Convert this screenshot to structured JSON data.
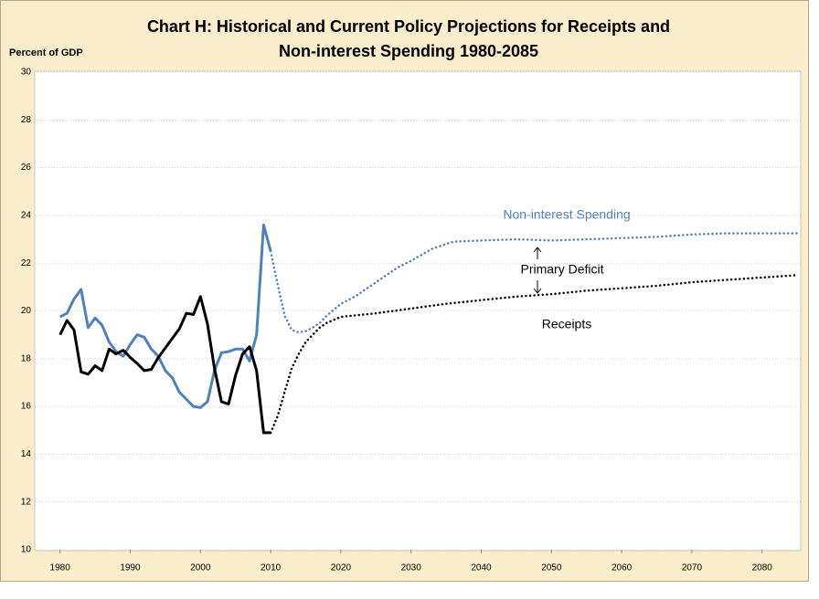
{
  "chart_data": {
    "type": "line",
    "title": [
      "Chart H: Historical and Current Policy Projections for Receipts and",
      "Non-interest Spending 1980-2085"
    ],
    "y_label": "Percent of GDP",
    "annotations": [
      "Non-interest Spending",
      "Primary Deficit",
      "Receipts"
    ],
    "xlim": [
      1976.4,
      2085.5
    ],
    "xticks": [
      1980,
      1990,
      2000,
      2010,
      2020,
      2030,
      2040,
      2050,
      2060,
      2070,
      2080
    ],
    "ylim": [
      10,
      30
    ],
    "yticks": [
      10,
      12,
      14,
      16,
      18,
      20,
      22,
      24,
      26,
      28,
      30
    ],
    "grid": true,
    "series": [
      {
        "color": "#4f81bd",
        "dotted": false,
        "x": [
          1980,
          1981,
          1982,
          1983,
          1984,
          1985,
          1986,
          1987,
          1988,
          1989,
          1990,
          1991,
          1992,
          1993,
          1994,
          1995,
          1996,
          1997,
          1998,
          1999,
          2000,
          2001,
          2002,
          2003,
          2004,
          2005,
          2006,
          2007,
          2008,
          2009,
          2010
        ],
        "values": [
          19.75,
          19.9,
          20.5,
          20.9,
          19.3,
          19.7,
          19.4,
          18.7,
          18.3,
          18.1,
          18.6,
          19.0,
          18.9,
          18.4,
          18.1,
          17.5,
          17.2,
          16.6,
          16.3,
          16.0,
          15.95,
          16.2,
          17.5,
          18.25,
          18.3,
          18.4,
          18.4,
          17.9,
          19.0,
          23.6,
          22.5
        ]
      },
      {
        "color": "#4f81bd",
        "dotted": true,
        "x": [
          2010,
          2011,
          2012,
          2013,
          2014,
          2015,
          2016,
          2017,
          2018,
          2020,
          2022,
          2025,
          2028,
          2030,
          2033,
          2036,
          2040,
          2045,
          2050,
          2055,
          2060,
          2065,
          2070,
          2075,
          2080,
          2085
        ],
        "values": [
          22.5,
          21.1,
          19.8,
          19.2,
          19.1,
          19.15,
          19.3,
          19.5,
          19.8,
          20.3,
          20.6,
          21.2,
          21.8,
          22.1,
          22.6,
          22.9,
          22.95,
          23.0,
          22.95,
          23.0,
          23.05,
          23.1,
          23.2,
          23.25,
          23.25,
          23.25
        ]
      },
      {
        "color": "#000000",
        "dotted": false,
        "x": [
          1980,
          1981,
          1982,
          1983,
          1984,
          1985,
          1986,
          1987,
          1988,
          1989,
          1990,
          1991,
          1992,
          1993,
          1994,
          1995,
          1996,
          1997,
          1998,
          1999,
          2000,
          2001,
          2002,
          2003,
          2004,
          2005,
          2006,
          2007,
          2008,
          2009,
          2010
        ],
        "values": [
          19.0,
          19.6,
          19.2,
          17.45,
          17.35,
          17.7,
          17.5,
          18.4,
          18.2,
          18.35,
          18.05,
          17.8,
          17.5,
          17.55,
          18.05,
          18.45,
          18.85,
          19.25,
          19.9,
          19.85,
          20.6,
          19.45,
          17.6,
          16.2,
          16.1,
          17.3,
          18.2,
          18.5,
          17.5,
          14.9,
          14.9
        ]
      },
      {
        "color": "#000000",
        "dotted": true,
        "x": [
          2010,
          2011,
          2012,
          2013,
          2014,
          2015,
          2016,
          2017,
          2018,
          2020,
          2025,
          2030,
          2035,
          2040,
          2045,
          2050,
          2055,
          2060,
          2065,
          2070,
          2075,
          2080,
          2085
        ],
        "values": [
          14.9,
          15.6,
          16.6,
          17.6,
          18.2,
          18.7,
          19.0,
          19.3,
          19.5,
          19.75,
          19.9,
          20.1,
          20.3,
          20.45,
          20.6,
          20.7,
          20.85,
          20.95,
          21.05,
          21.2,
          21.3,
          21.4,
          21.5
        ]
      }
    ]
  }
}
